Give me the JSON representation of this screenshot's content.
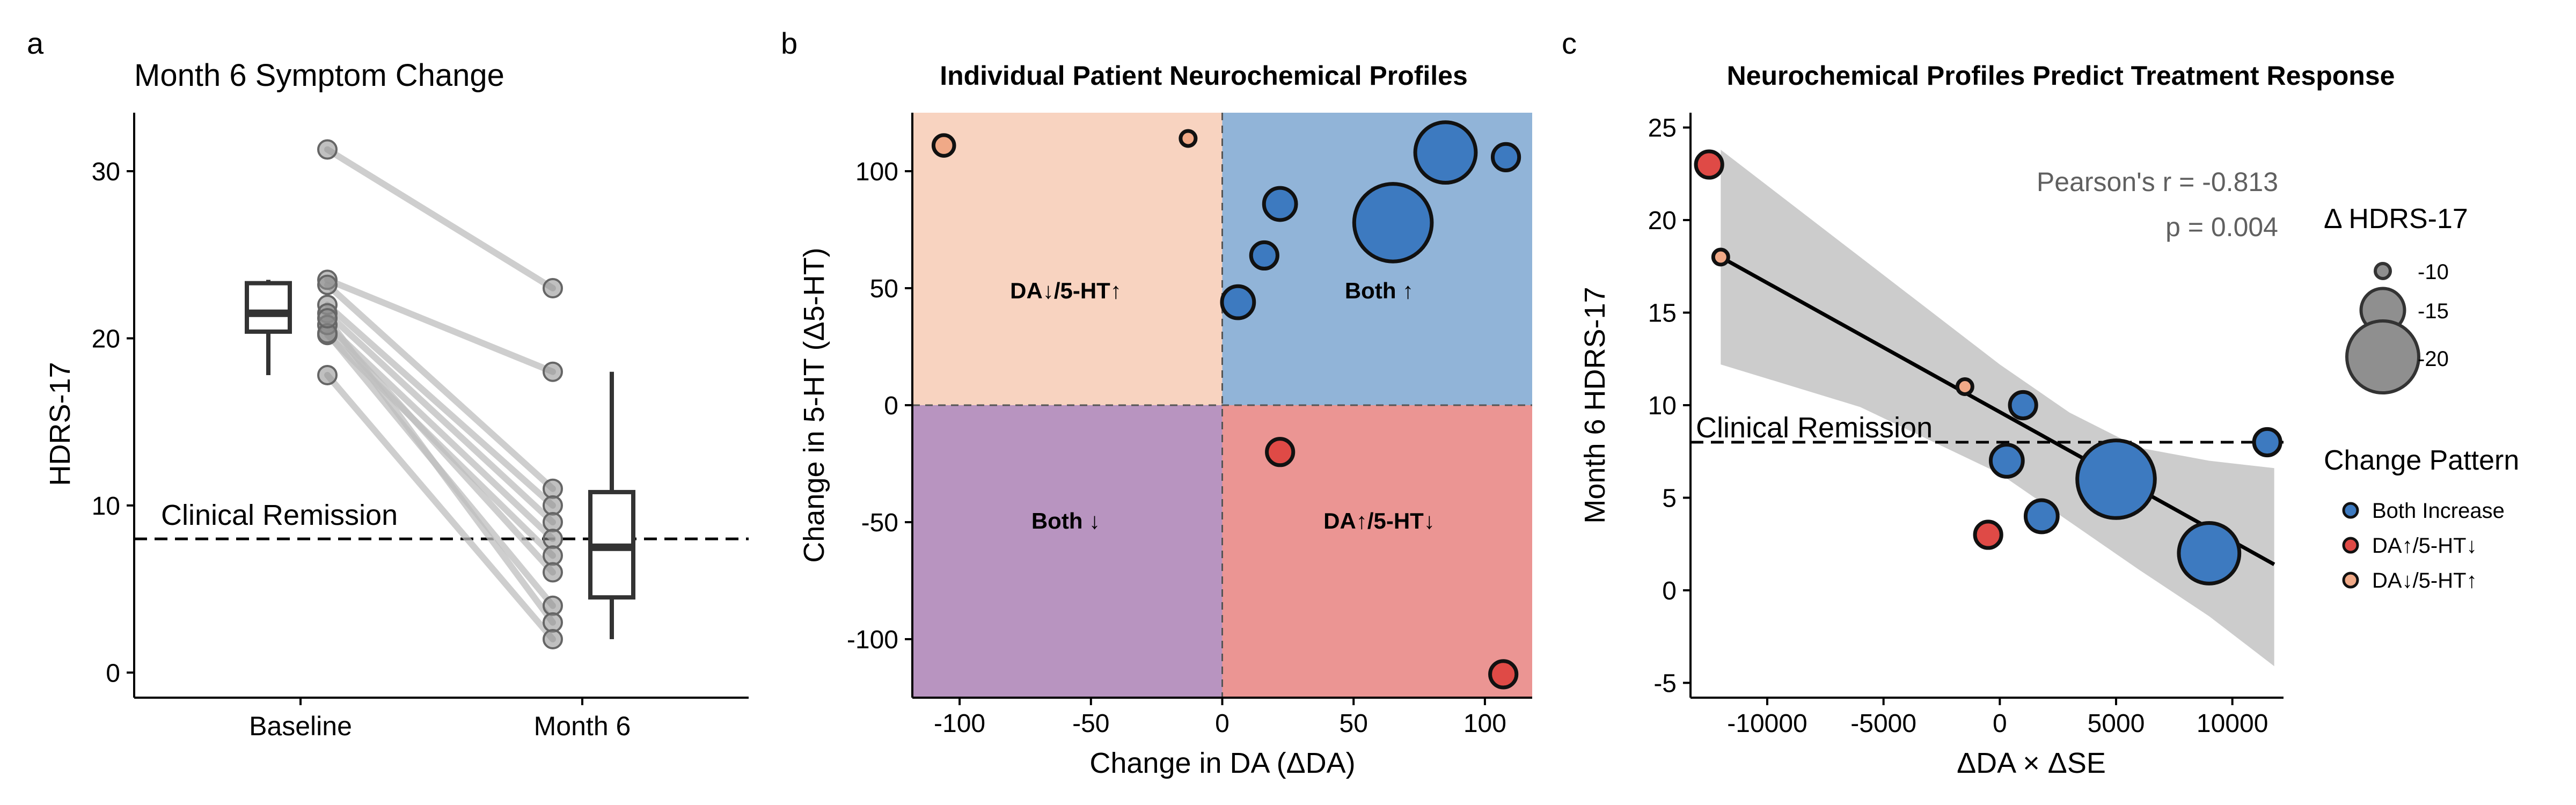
{
  "figure": {
    "panel_letters": [
      "a",
      "b",
      "c"
    ],
    "colors": {
      "both_increase": "#3d7ac0",
      "da_up_5ht_down": "#df4a46",
      "da_down_5ht_up": "#f0a987",
      "quad_da_down_5ht_up": "#f8d3c0",
      "quad_both_up": "#91b4d8",
      "quad_both_down": "#b894c0",
      "quad_da_up_5ht_down": "#eb9593",
      "paired_line": "#bdbdbd",
      "paired_point": "#8c8c8c",
      "ribbon": "#cccccc"
    }
  },
  "chart_data": [
    {
      "type": "box-paired",
      "title": "Month 6 Symptom Change",
      "xlabel": "",
      "ylabel": "HDRS-17",
      "categories": [
        "Baseline",
        "Month 6"
      ],
      "ylim": [
        -1.5,
        33.5
      ],
      "yticks": [
        0,
        10,
        20,
        30
      ],
      "reference_line": {
        "y": 8,
        "label": "Clinical Remission"
      },
      "pairs": [
        [
          31.3,
          23
        ],
        [
          23.5,
          18
        ],
        [
          23.2,
          11
        ],
        [
          22,
          10
        ],
        [
          21.5,
          9
        ],
        [
          20.8,
          8
        ],
        [
          20.2,
          7
        ],
        [
          20.8,
          6
        ],
        [
          20.3,
          4
        ],
        [
          21.2,
          3
        ],
        [
          17.8,
          2
        ]
      ],
      "boxes": [
        {
          "category": "Baseline",
          "min": 17.8,
          "q1": 20.4,
          "median": 21.5,
          "q3": 23.3,
          "max": 23.5
        },
        {
          "category": "Month 6",
          "min": 2,
          "q1": 4.5,
          "median": 7.5,
          "q3": 10.8,
          "max": 18
        }
      ]
    },
    {
      "type": "scatter",
      "title": "Individual Patient Neurochemical Profiles",
      "xlabel": "Change in DA (ΔDA)",
      "ylabel": "Change in 5-HT (Δ5-HT)",
      "xlim": [
        -118,
        118
      ],
      "ylim": [
        -125,
        125
      ],
      "xticks": [
        -100,
        -50,
        0,
        50,
        100
      ],
      "yticks": [
        -100,
        -50,
        0,
        50,
        100
      ],
      "quadrant_labels": [
        "DA↓/5-HT↑",
        "Both ↑",
        "Both ↓",
        "DA↑/5-HT↓"
      ],
      "points": [
        {
          "x": -106,
          "y": 111,
          "group": "da_down_5ht_up",
          "size": -11
        },
        {
          "x": -13,
          "y": 114,
          "group": "da_down_5ht_up",
          "size": -10
        },
        {
          "x": 85,
          "y": 108,
          "group": "both_increase",
          "size": -18
        },
        {
          "x": 108,
          "y": 106,
          "group": "both_increase",
          "size": -12
        },
        {
          "x": 65,
          "y": 78,
          "group": "both_increase",
          "size": -21
        },
        {
          "x": 22,
          "y": 86,
          "group": "both_increase",
          "size": -13
        },
        {
          "x": 16,
          "y": 64,
          "group": "both_increase",
          "size": -12
        },
        {
          "x": 6,
          "y": 44,
          "group": "both_increase",
          "size": -13
        },
        {
          "x": 22,
          "y": -20,
          "group": "da_up_5ht_down",
          "size": -12
        },
        {
          "x": 107,
          "y": -115,
          "group": "da_up_5ht_down",
          "size": -12
        }
      ]
    },
    {
      "type": "scatter",
      "title": "Neurochemical Profiles Predict Treatment Response",
      "xlabel": "ΔDA × ΔSE",
      "ylabel": "Month 6 HDRS-17",
      "xlim": [
        -13300,
        12200
      ],
      "ylim": [
        -5.8,
        25.8
      ],
      "xticks": [
        -10000,
        -5000,
        0,
        5000,
        10000
      ],
      "yticks": [
        -5,
        0,
        5,
        10,
        15,
        20,
        25
      ],
      "reference_line": {
        "y": 8,
        "label": "Clinical Remission"
      },
      "stats": {
        "r_text": "Pearson's r = -0.813",
        "p_text": "p = 0.004"
      },
      "fit": {
        "x0": -12000,
        "y0": 18,
        "x1": 11800,
        "y1": 1.4
      },
      "ci_band": [
        [
          -12000,
          12.2,
          23.8
        ],
        [
          -6000,
          9.9,
          18.0
        ],
        [
          0,
          6.3,
          12.2
        ],
        [
          3000,
          3.7,
          9.6
        ],
        [
          6000,
          1.1,
          7.7
        ],
        [
          9000,
          -1.4,
          7.0
        ],
        [
          11800,
          -4.1,
          6.6
        ]
      ],
      "points": [
        {
          "x": -12500,
          "y": 23,
          "group": "da_up_5ht_down",
          "size": -12
        },
        {
          "x": -12000,
          "y": 18,
          "group": "da_down_5ht_up",
          "size": -10
        },
        {
          "x": -1500,
          "y": 11,
          "group": "da_down_5ht_up",
          "size": -10
        },
        {
          "x": -500,
          "y": 3,
          "group": "da_up_5ht_down",
          "size": -12
        },
        {
          "x": 1000,
          "y": 10,
          "group": "both_increase",
          "size": -12
        },
        {
          "x": 300,
          "y": 7,
          "group": "both_increase",
          "size": -13
        },
        {
          "x": 1800,
          "y": 4,
          "group": "both_increase",
          "size": -13
        },
        {
          "x": 5000,
          "y": 6,
          "group": "both_increase",
          "size": -21
        },
        {
          "x": 9000,
          "y": 2,
          "group": "both_increase",
          "size": -18
        },
        {
          "x": 11500,
          "y": 8,
          "group": "both_increase",
          "size": -12
        }
      ],
      "legend_size": {
        "title": "Δ HDRS-17",
        "entries": [
          {
            "value": -10,
            "label": "-10"
          },
          {
            "value": -15,
            "label": "-15"
          },
          {
            "value": -20,
            "label": "-20"
          }
        ]
      },
      "legend_color": {
        "title": "Change Pattern",
        "entries": [
          {
            "group": "both_increase",
            "label": "Both Increase"
          },
          {
            "group": "da_up_5ht_down",
            "label": "DA↑/5-HT↓"
          },
          {
            "group": "da_down_5ht_up",
            "label": "DA↓/5-HT↑"
          }
        ]
      }
    }
  ]
}
